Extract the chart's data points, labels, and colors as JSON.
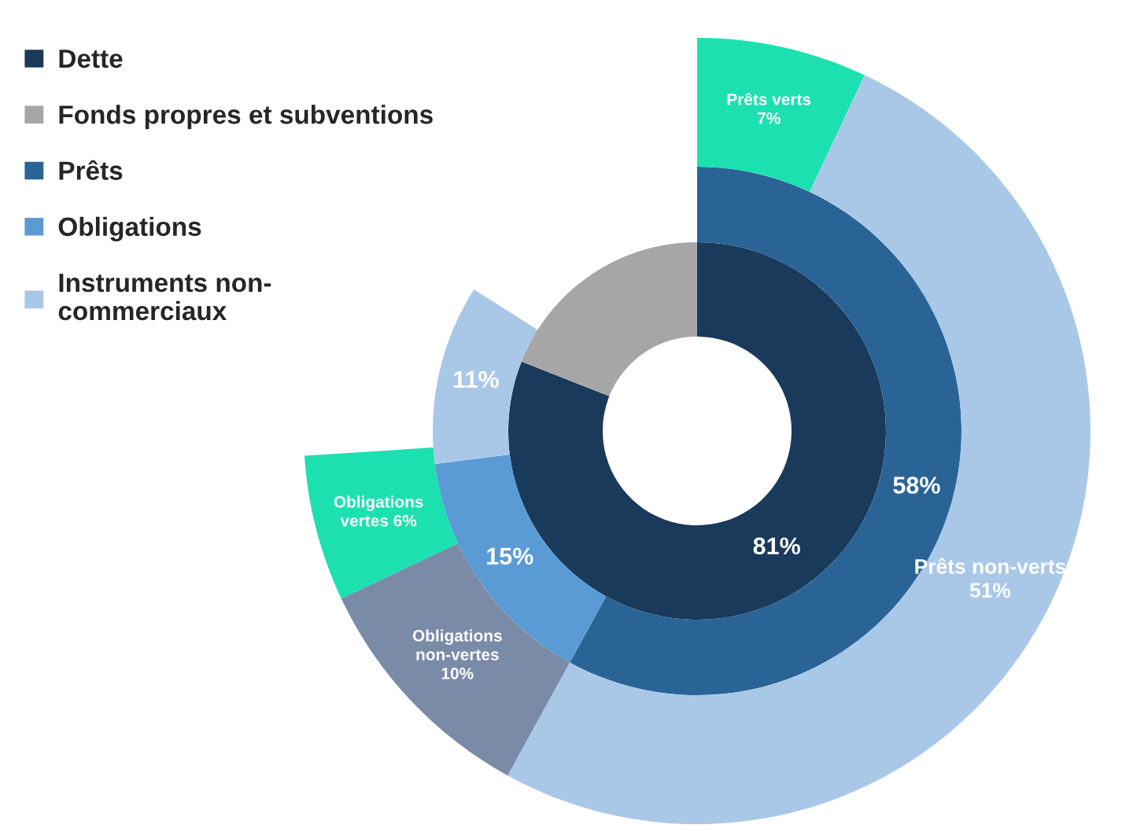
{
  "chart_data": {
    "type": "donut",
    "legend": "top left",
    "categories": [
      "Dette",
      "Fonds propres et subventions",
      "Prêts",
      "Obligations",
      "Instruments non-\ncommerciaux",
      null,
      null,
      null,
      null
    ],
    "colors": [
      "#1a3a5c",
      "#a6a6a6",
      "#2a6496",
      "#5b9bd5",
      "#a9c8e8",
      "#1de0b0",
      "#a9c8e8",
      "#7a8ba8",
      "#1de0b0"
    ],
    "series": [
      {
        "values": [
          81,
          19,
          null,
          null,
          null,
          null,
          null,
          null,
          null
        ],
        "value_labels": [
          "81%",
          null,
          null,
          null,
          null,
          null,
          null,
          null,
          null
        ]
      },
      {
        "values": [
          null,
          null,
          58,
          15,
          11,
          null,
          null,
          null,
          null
        ],
        "value_labels": [
          null,
          null,
          "58%",
          "15%",
          "11%",
          null,
          null,
          null,
          null
        ]
      },
      {
        "values": [
          null,
          null,
          null,
          null,
          null,
          7,
          51,
          10,
          6
        ],
        "value_labels": [
          null,
          null,
          null,
          null,
          null,
          "Prêts verts\n7%",
          "Prêts non-verts\n51%",
          "Obligations\nnon-vertes\n10%",
          "Obligations\nvertes 6%"
        ]
      }
    ]
  }
}
